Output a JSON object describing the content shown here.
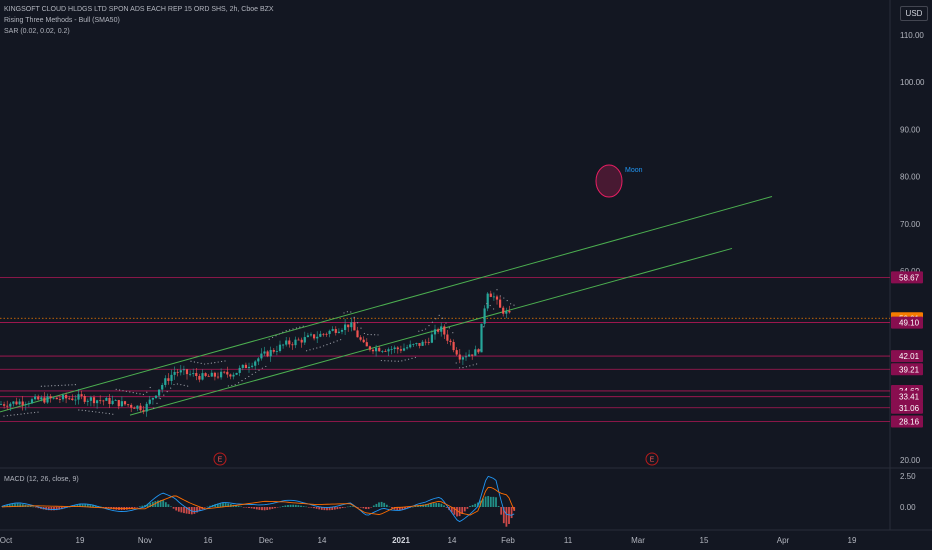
{
  "legend": {
    "line1": "KINGSOFT CLOUD HLDGS LTD SPON ADS EACH REP 15 ORD SHS, 2h, Cboe BZX",
    "line2": "Rising Three Methods - Bull (SMA50)",
    "line3": "SAR (0.02, 0.02, 0.2)",
    "macd": "MACD (12, 26, close, 9)"
  },
  "currency": "USD",
  "price_axis": {
    "ticks": [
      "110.00",
      "100.00",
      "90.00",
      "80.00",
      "70.00",
      "60.00",
      "20.00"
    ],
    "tick_values": [
      110,
      100,
      90,
      80,
      70,
      60,
      20
    ]
  },
  "level_labels": [
    {
      "text": "58.67",
      "value": 58.67,
      "color": "#880e4f"
    },
    {
      "text": "50.01",
      "value": 50.01,
      "color": "#f57c00"
    },
    {
      "text": "49.10",
      "value": 49.1,
      "color": "#880e4f"
    },
    {
      "text": "42.01",
      "value": 42.01,
      "color": "#880e4f"
    },
    {
      "text": "39.21",
      "value": 39.21,
      "color": "#880e4f"
    },
    {
      "text": "34.62",
      "value": 34.62,
      "color": "#880e4f"
    },
    {
      "text": "33.41",
      "value": 33.41,
      "color": "#880e4f"
    },
    {
      "text": "31.06",
      "value": 31.06,
      "color": "#880e4f"
    },
    {
      "text": "28.16",
      "value": 28.16,
      "color": "#880e4f"
    }
  ],
  "macd_axis": {
    "ticks": [
      "2.50",
      "0.00"
    ],
    "tick_values": [
      2.5,
      0
    ]
  },
  "time_axis": {
    "labels": [
      "Oct",
      "19",
      "Nov",
      "16",
      "Dec",
      "14",
      "2021",
      "14",
      "Feb",
      "11",
      "Mar",
      "15",
      "Apr",
      "19"
    ]
  },
  "annotations": {
    "moon": "Moon",
    "earnings_marker": "E"
  },
  "colors": {
    "background": "#131722",
    "up": "#26a69a",
    "down": "#ef5350",
    "channel": "#4caf50",
    "level_line": "#c2185b",
    "current_price": "#f57c00",
    "sar": "#9598a1",
    "macd_line": "#2196f3",
    "signal_line": "#ff6d00",
    "moon": "#e91e63"
  },
  "chart_data": {
    "type": "candlestick",
    "series_price_approx": {
      "x": [
        "Oct",
        "19",
        "Nov",
        "16",
        "Dec",
        "14",
        "2021",
        "14",
        "Feb"
      ],
      "close": [
        32.5,
        34.0,
        31.5,
        38.5,
        42.5,
        49.5,
        43.5,
        44.5,
        50.0
      ]
    },
    "horizontal_levels": [
      58.67,
      50.01,
      49.1,
      42.01,
      39.21,
      34.62,
      33.41,
      31.06,
      28.16
    ],
    "current_price": 50.01,
    "y_range": [
      18,
      113
    ],
    "macd_range": [
      -1.6,
      3.0
    ]
  }
}
